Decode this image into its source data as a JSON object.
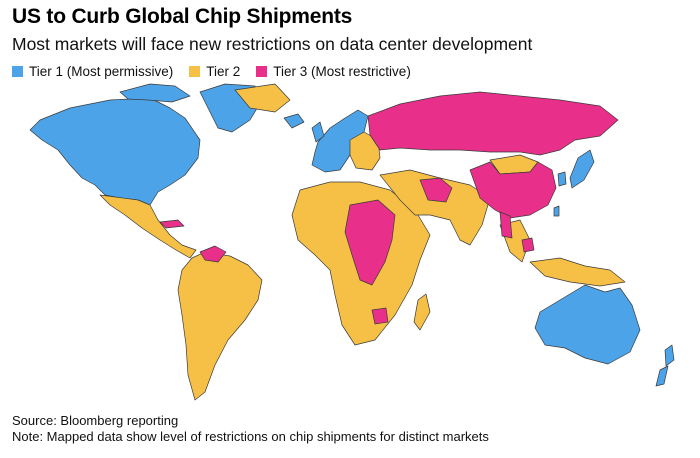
{
  "header": {
    "title": "US to Curb Global Chip Shipments",
    "subtitle": "Most markets will face new restrictions on data center development"
  },
  "legend": {
    "items": [
      {
        "label": "Tier 1 (Most permissive)",
        "color": "#4da3e8"
      },
      {
        "label": "Tier 2",
        "color": "#f5c045"
      },
      {
        "label": "Tier 3 (Most restrictive)",
        "color": "#e8308a"
      }
    ]
  },
  "map": {
    "border_color": "#3a3a3a",
    "tiers": {
      "tier1": [
        "United States",
        "Canada",
        "Greenland",
        "Iceland",
        "Western Europe",
        "Japan",
        "South Korea",
        "Taiwan",
        "Australia",
        "New Zealand"
      ],
      "tier2": [
        "Mexico",
        "Central America",
        "South America",
        "Africa",
        "Eastern Europe",
        "Middle East",
        "India",
        "Southeast Asia",
        "Mongolia"
      ],
      "tier3": [
        "Russia",
        "China",
        "Iran",
        "Venezuela",
        "Cuba",
        "Sudan",
        "Congo",
        "Myanmar"
      ]
    }
  },
  "footer": {
    "source": "Source: Bloomberg reporting",
    "note": "Note: Mapped data show level of restrictions on chip shipments for distinct markets"
  }
}
